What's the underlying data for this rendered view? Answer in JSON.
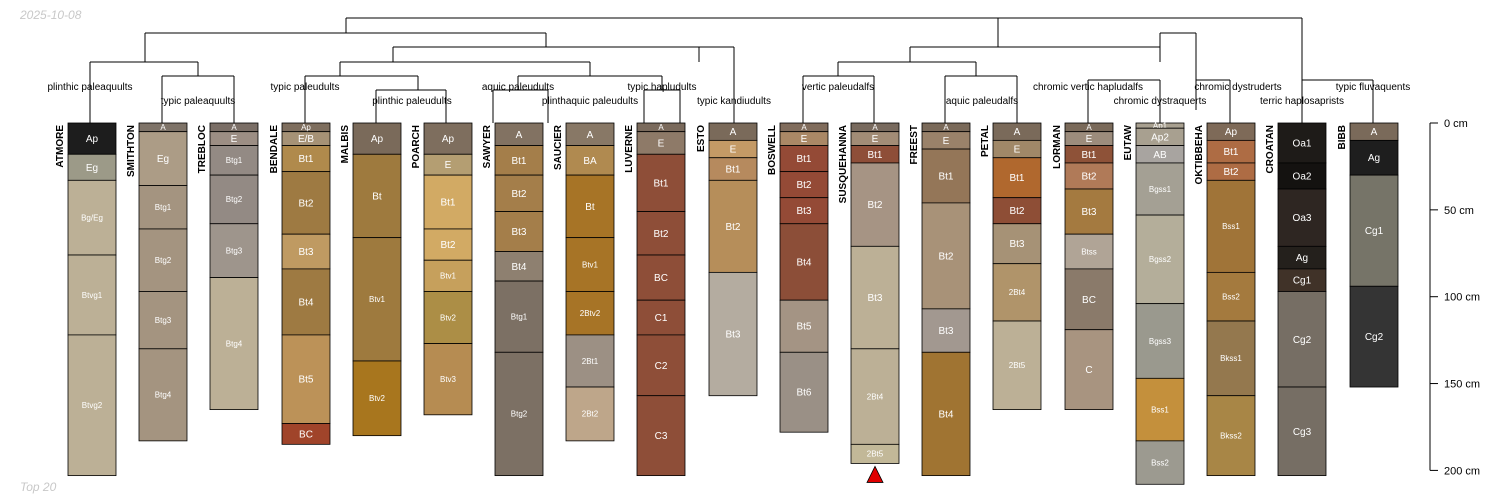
{
  "header": {
    "date": "2025-10-08"
  },
  "footer": {
    "label": "Top 20"
  },
  "chart_data": {
    "type": "soil-profile-sketch",
    "depth_axis": {
      "ticks": [
        0,
        50,
        100,
        150,
        200
      ],
      "unit": "cm",
      "range": [
        0,
        200
      ]
    },
    "dendrogram_labels": [
      "plinthic paleaquults",
      "typic paleaquults",
      "typic paleudults",
      "plinthic paleudults",
      "aquic paleudults",
      "plinthaquic paleudults",
      "typic hapludults",
      "typic kandiudults",
      "vertic paleudalfs",
      "aquic paleudalfs",
      "chromic vertic hapludalfs",
      "chromic dystraquerts",
      "chromic dystruderts",
      "terric haplosaprists",
      "typic fluvaquents"
    ],
    "marker": {
      "profile": "SUSQUEHANNA",
      "symbol": "triangle",
      "color": "#e00000"
    },
    "profiles": [
      {
        "name": "ATMORE",
        "horizons": [
          {
            "name": "Ap",
            "top": 0,
            "bottom": 18,
            "color": "#1d1d1d"
          },
          {
            "name": "Eg",
            "top": 18,
            "bottom": 33,
            "color": "#9c9a88"
          },
          {
            "name": "Bg/Eg",
            "top": 33,
            "bottom": 76,
            "color": "#bcb096"
          },
          {
            "name": "Btvg1",
            "top": 76,
            "bottom": 122,
            "color": "#bcb096"
          },
          {
            "name": "Btvg2",
            "top": 122,
            "bottom": 203,
            "color": "#bcb096"
          }
        ]
      },
      {
        "name": "SMITHTON",
        "horizons": [
          {
            "name": "A",
            "top": 0,
            "bottom": 5,
            "color": "#7e7368"
          },
          {
            "name": "Eg",
            "top": 5,
            "bottom": 36,
            "color": "#ac9c86"
          },
          {
            "name": "Btg1",
            "top": 36,
            "bottom": 61,
            "color": "#a49480"
          },
          {
            "name": "Btg2",
            "top": 61,
            "bottom": 97,
            "color": "#a49480"
          },
          {
            "name": "Btg3",
            "top": 97,
            "bottom": 130,
            "color": "#a49480"
          },
          {
            "name": "Btg4",
            "top": 130,
            "bottom": 183,
            "color": "#a49480"
          }
        ]
      },
      {
        "name": "TREBLOC",
        "horizons": [
          {
            "name": "A",
            "top": 0,
            "bottom": 5,
            "color": "#7a6e66"
          },
          {
            "name": "E",
            "top": 5,
            "bottom": 13,
            "color": "#9c8e84"
          },
          {
            "name": "Btg1",
            "top": 13,
            "bottom": 30,
            "color": "#938a84"
          },
          {
            "name": "Btg2",
            "top": 30,
            "bottom": 58,
            "color": "#938a84"
          },
          {
            "name": "Btg3",
            "top": 58,
            "bottom": 89,
            "color": "#9e958c"
          },
          {
            "name": "Btg4",
            "top": 89,
            "bottom": 165,
            "color": "#bcb096"
          }
        ]
      },
      {
        "name": "BENDALE",
        "horizons": [
          {
            "name": "Ap",
            "top": 0,
            "bottom": 5,
            "color": "#7e6e5e"
          },
          {
            "name": "E/B",
            "top": 5,
            "bottom": 13,
            "color": "#a69276"
          },
          {
            "name": "Bt1",
            "top": 13,
            "bottom": 28,
            "color": "#b08a4c"
          },
          {
            "name": "Bt2",
            "top": 28,
            "bottom": 64,
            "color": "#9e7a42"
          },
          {
            "name": "Bt3",
            "top": 64,
            "bottom": 84,
            "color": "#bf9a62"
          },
          {
            "name": "Bt4",
            "top": 84,
            "bottom": 122,
            "color": "#9e7a42"
          },
          {
            "name": "Bt5",
            "top": 122,
            "bottom": 173,
            "color": "#bc9258"
          },
          {
            "name": "BC",
            "top": 173,
            "bottom": 185,
            "color": "#a0442a"
          }
        ]
      },
      {
        "name": "MALBIS",
        "horizons": [
          {
            "name": "Ap",
            "top": 0,
            "bottom": 18,
            "color": "#7a6a5a"
          },
          {
            "name": "Bt",
            "top": 18,
            "bottom": 66,
            "color": "#9e7a3e"
          },
          {
            "name": "Btv1",
            "top": 66,
            "bottom": 137,
            "color": "#9e7a3e"
          },
          {
            "name": "Btv2",
            "top": 137,
            "bottom": 180,
            "color": "#a8761e"
          }
        ]
      },
      {
        "name": "POARCH",
        "horizons": [
          {
            "name": "Ap",
            "top": 0,
            "bottom": 18,
            "color": "#7e6e5e"
          },
          {
            "name": "E",
            "top": 18,
            "bottom": 30,
            "color": "#b49e72"
          },
          {
            "name": "Bt1",
            "top": 30,
            "bottom": 61,
            "color": "#d2aa64"
          },
          {
            "name": "Bt2",
            "top": 61,
            "bottom": 79,
            "color": "#d2aa64"
          },
          {
            "name": "Btv1",
            "top": 79,
            "bottom": 97,
            "color": "#c6a05c"
          },
          {
            "name": "Btv2",
            "top": 97,
            "bottom": 127,
            "color": "#ac8e46"
          },
          {
            "name": "Btv3",
            "top": 127,
            "bottom": 168,
            "color": "#b68c52"
          }
        ]
      },
      {
        "name": "SAWYER",
        "horizons": [
          {
            "name": "A",
            "top": 0,
            "bottom": 13,
            "color": "#827262"
          },
          {
            "name": "Bt1",
            "top": 13,
            "bottom": 30,
            "color": "#a47e4a"
          },
          {
            "name": "Bt2",
            "top": 30,
            "bottom": 51,
            "color": "#a47e4a"
          },
          {
            "name": "Bt3",
            "top": 51,
            "bottom": 74,
            "color": "#a47e4a"
          },
          {
            "name": "Bt4",
            "top": 74,
            "bottom": 91,
            "color": "#8e8070"
          },
          {
            "name": "Btg1",
            "top": 91,
            "bottom": 132,
            "color": "#7c7064"
          },
          {
            "name": "Btg2",
            "top": 132,
            "bottom": 203,
            "color": "#7c7064"
          }
        ]
      },
      {
        "name": "SAUCIER",
        "horizons": [
          {
            "name": "A",
            "top": 0,
            "bottom": 13,
            "color": "#887866"
          },
          {
            "name": "BA",
            "top": 13,
            "bottom": 30,
            "color": "#b08a50"
          },
          {
            "name": "Bt",
            "top": 30,
            "bottom": 66,
            "color": "#a77426"
          },
          {
            "name": "Btv1",
            "top": 66,
            "bottom": 97,
            "color": "#a77426"
          },
          {
            "name": "2Btv2",
            "top": 97,
            "bottom": 122,
            "color": "#a77426"
          },
          {
            "name": "2Bt1",
            "top": 122,
            "bottom": 152,
            "color": "#9c9084"
          },
          {
            "name": "2Bt2",
            "top": 152,
            "bottom": 183,
            "color": "#bea68a"
          }
        ]
      },
      {
        "name": "LUVERNE",
        "horizons": [
          {
            "name": "A",
            "top": 0,
            "bottom": 5,
            "color": "#7a6a5c"
          },
          {
            "name": "E",
            "top": 5,
            "bottom": 18,
            "color": "#8e7a68"
          },
          {
            "name": "Bt1",
            "top": 18,
            "bottom": 51,
            "color": "#8e4e38"
          },
          {
            "name": "Bt2",
            "top": 51,
            "bottom": 76,
            "color": "#8e4e38"
          },
          {
            "name": "BC",
            "top": 76,
            "bottom": 102,
            "color": "#8e4e38"
          },
          {
            "name": "C1",
            "top": 102,
            "bottom": 122,
            "color": "#8e4e38"
          },
          {
            "name": "C2",
            "top": 122,
            "bottom": 157,
            "color": "#8e4e38"
          },
          {
            "name": "C3",
            "top": 157,
            "bottom": 203,
            "color": "#8e4e38"
          }
        ]
      },
      {
        "name": "ESTO",
        "horizons": [
          {
            "name": "A",
            "top": 0,
            "bottom": 10,
            "color": "#7a6a5a"
          },
          {
            "name": "E",
            "top": 10,
            "bottom": 20,
            "color": "#c49a66"
          },
          {
            "name": "Bt1",
            "top": 20,
            "bottom": 33,
            "color": "#b68a5e"
          },
          {
            "name": "Bt2",
            "top": 33,
            "bottom": 86,
            "color": "#b68e5a"
          },
          {
            "name": "Bt3",
            "top": 86,
            "bottom": 157,
            "color": "#b4aca0"
          }
        ]
      },
      {
        "name": "BOSWELL",
        "horizons": [
          {
            "name": "A",
            "top": 0,
            "bottom": 5,
            "color": "#806c5c"
          },
          {
            "name": "E",
            "top": 5,
            "bottom": 13,
            "color": "#aa8866"
          },
          {
            "name": "Bt1",
            "top": 13,
            "bottom": 28,
            "color": "#944a36"
          },
          {
            "name": "Bt2",
            "top": 28,
            "bottom": 43,
            "color": "#944a36"
          },
          {
            "name": "Bt3",
            "top": 43,
            "bottom": 58,
            "color": "#944a36"
          },
          {
            "name": "Bt4",
            "top": 58,
            "bottom": 102,
            "color": "#8c4e38"
          },
          {
            "name": "Bt5",
            "top": 102,
            "bottom": 132,
            "color": "#a49484"
          },
          {
            "name": "Bt6",
            "top": 132,
            "bottom": 178,
            "color": "#9a9086"
          }
        ]
      },
      {
        "name": "SUSQUEHANNA",
        "horizons": [
          {
            "name": "A",
            "top": 0,
            "bottom": 5,
            "color": "#786a5e"
          },
          {
            "name": "E",
            "top": 5,
            "bottom": 13,
            "color": "#a28c76"
          },
          {
            "name": "Bt1",
            "top": 13,
            "bottom": 23,
            "color": "#8e4e38"
          },
          {
            "name": "Bt2",
            "top": 23,
            "bottom": 71,
            "color": "#a69484"
          },
          {
            "name": "Bt3",
            "top": 71,
            "bottom": 130,
            "color": "#bcb096"
          },
          {
            "name": "2Bt4",
            "top": 130,
            "bottom": 185,
            "color": "#bcb096"
          },
          {
            "name": "2Bt5",
            "top": 185,
            "bottom": 196,
            "color": "#c2b898"
          }
        ]
      },
      {
        "name": "FREEST",
        "horizons": [
          {
            "name": "A",
            "top": 0,
            "bottom": 5,
            "color": "#7a6a5a"
          },
          {
            "name": "E",
            "top": 5,
            "bottom": 15,
            "color": "#9a826a"
          },
          {
            "name": "Bt1",
            "top": 15,
            "bottom": 46,
            "color": "#947658"
          },
          {
            "name": "Bt2",
            "top": 46,
            "bottom": 107,
            "color": "#a89278"
          },
          {
            "name": "Bt3",
            "top": 107,
            "bottom": 132,
            "color": "#a29890"
          },
          {
            "name": "Bt4",
            "top": 132,
            "bottom": 203,
            "color": "#a07432"
          }
        ]
      },
      {
        "name": "PETAL",
        "horizons": [
          {
            "name": "A",
            "top": 0,
            "bottom": 10,
            "color": "#7a6a5a"
          },
          {
            "name": "E",
            "top": 10,
            "bottom": 20,
            "color": "#a08868"
          },
          {
            "name": "Bt1",
            "top": 20,
            "bottom": 43,
            "color": "#b0682e"
          },
          {
            "name": "Bt2",
            "top": 43,
            "bottom": 58,
            "color": "#8e4e36"
          },
          {
            "name": "Bt3",
            "top": 58,
            "bottom": 81,
            "color": "#a69276"
          },
          {
            "name": "2Bt4",
            "top": 81,
            "bottom": 114,
            "color": "#b0946a"
          },
          {
            "name": "2Bt5",
            "top": 114,
            "bottom": 165,
            "color": "#bcb096"
          }
        ]
      },
      {
        "name": "LORMAN",
        "horizons": [
          {
            "name": "A",
            "top": 0,
            "bottom": 5,
            "color": "#7a6a5a"
          },
          {
            "name": "E",
            "top": 5,
            "bottom": 13,
            "color": "#9c8c7c"
          },
          {
            "name": "Bt1",
            "top": 13,
            "bottom": 23,
            "color": "#8e5238"
          },
          {
            "name": "Bt2",
            "top": 23,
            "bottom": 38,
            "color": "#b07a58"
          },
          {
            "name": "Bt3",
            "top": 38,
            "bottom": 64,
            "color": "#a47a40"
          },
          {
            "name": "Btss",
            "top": 64,
            "bottom": 84,
            "color": "#b0a496"
          },
          {
            "name": "BC",
            "top": 84,
            "bottom": 119,
            "color": "#8a7a6a"
          },
          {
            "name": "C",
            "top": 119,
            "bottom": 165,
            "color": "#a89480"
          }
        ]
      },
      {
        "name": "EUTAW",
        "horizons": [
          {
            "name": "Ap1",
            "top": 0,
            "bottom": 3,
            "color": "#a8a090"
          },
          {
            "name": "Ap2",
            "top": 3,
            "bottom": 13,
            "color": "#a8a090"
          },
          {
            "name": "AB",
            "top": 13,
            "bottom": 23,
            "color": "#a8a4a0"
          },
          {
            "name": "Bgss1",
            "top": 23,
            "bottom": 53,
            "color": "#a4a094"
          },
          {
            "name": "Bgss2",
            "top": 53,
            "bottom": 104,
            "color": "#b4ae9a"
          },
          {
            "name": "Bgss3",
            "top": 104,
            "bottom": 147,
            "color": "#9a998e"
          },
          {
            "name": "Bss1",
            "top": 147,
            "bottom": 183,
            "color": "#c4903c"
          },
          {
            "name": "Bss2",
            "top": 183,
            "bottom": 208,
            "color": "#9c9a90"
          }
        ]
      },
      {
        "name": "OKTIBBEHA",
        "horizons": [
          {
            "name": "Ap",
            "top": 0,
            "bottom": 10,
            "color": "#7e6a58"
          },
          {
            "name": "Bt1",
            "top": 10,
            "bottom": 23,
            "color": "#ae6c44"
          },
          {
            "name": "Bt2",
            "top": 23,
            "bottom": 33,
            "color": "#ae6c44"
          },
          {
            "name": "Bss1",
            "top": 33,
            "bottom": 86,
            "color": "#a07438"
          },
          {
            "name": "Bss2",
            "top": 86,
            "bottom": 114,
            "color": "#a47a3e"
          },
          {
            "name": "Bkss1",
            "top": 114,
            "bottom": 157,
            "color": "#94784e"
          },
          {
            "name": "Bkss2",
            "top": 157,
            "bottom": 203,
            "color": "#a88646"
          }
        ]
      },
      {
        "name": "CROATAN",
        "horizons": [
          {
            "name": "Oa1",
            "top": 0,
            "bottom": 23,
            "color": "#1e1b18"
          },
          {
            "name": "Oa2",
            "top": 23,
            "bottom": 38,
            "color": "#141210"
          },
          {
            "name": "Oa3",
            "top": 38,
            "bottom": 71,
            "color": "#2e2622"
          },
          {
            "name": "Ag",
            "top": 71,
            "bottom": 84,
            "color": "#24201c"
          },
          {
            "name": "Cg1",
            "top": 84,
            "bottom": 97,
            "color": "#403228"
          },
          {
            "name": "Cg2",
            "top": 97,
            "bottom": 152,
            "color": "#766e64"
          },
          {
            "name": "Cg3",
            "top": 152,
            "bottom": 203,
            "color": "#766e64"
          }
        ]
      },
      {
        "name": "BIBB",
        "horizons": [
          {
            "name": "A",
            "top": 0,
            "bottom": 10,
            "color": "#7a6a5a"
          },
          {
            "name": "Ag",
            "top": 10,
            "bottom": 30,
            "color": "#1e1e1e"
          },
          {
            "name": "Cg1",
            "top": 30,
            "bottom": 94,
            "color": "#767468"
          },
          {
            "name": "Cg2",
            "top": 94,
            "bottom": 152,
            "color": "#343434"
          }
        ]
      }
    ]
  }
}
